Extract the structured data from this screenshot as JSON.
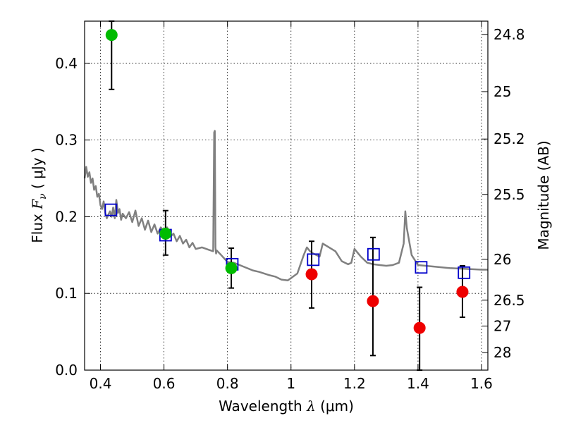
{
  "chart_data": {
    "type": "scatter",
    "xlabel": {
      "prefix": "Wavelength  ",
      "symbol": "λ",
      "units": " (μm)"
    },
    "ylabel": {
      "prefix": "Flux  ",
      "symbol": "F",
      "subscript": "ν",
      "units": "  ( μJy )"
    },
    "ylabel_right": "Magnitude (AB)",
    "xlim": [
      0.35,
      1.62
    ],
    "ylim": [
      0.0,
      0.455
    ],
    "grid": true,
    "x_ticks": [
      0.4,
      0.6,
      0.8,
      1.0,
      1.2,
      1.4,
      1.6
    ],
    "x_tick_labels": [
      "0.4",
      "0.6",
      "0.8",
      "1",
      "1.2",
      "1.4",
      "1.6"
    ],
    "y_ticks": [
      0.0,
      0.1,
      0.2,
      0.3,
      0.4
    ],
    "y_tick_labels": [
      "0.0",
      "0.1",
      "0.2",
      "0.3",
      "0.4"
    ],
    "right_ticks": [
      {
        "flux": 0.4377,
        "label": "24.8"
      },
      {
        "flux": 0.3631,
        "label": "25"
      },
      {
        "flux": 0.3013,
        "label": "25.2"
      },
      {
        "flux": 0.2291,
        "label": "25.5"
      },
      {
        "flux": 0.1445,
        "label": "26"
      },
      {
        "flux": 0.0912,
        "label": "26.5"
      },
      {
        "flux": 0.0575,
        "label": "27"
      },
      {
        "flux": 0.0229,
        "label": "28"
      }
    ],
    "series": [
      {
        "kind": "model_spectrum",
        "color": "#808080",
        "x": [
          0.35,
          0.355,
          0.36,
          0.365,
          0.37,
          0.375,
          0.38,
          0.385,
          0.39,
          0.395,
          0.4,
          0.405,
          0.41,
          0.415,
          0.42,
          0.425,
          0.43,
          0.435,
          0.44,
          0.445,
          0.45,
          0.455,
          0.46,
          0.465,
          0.47,
          0.48,
          0.49,
          0.5,
          0.51,
          0.52,
          0.53,
          0.54,
          0.55,
          0.56,
          0.57,
          0.58,
          0.59,
          0.6,
          0.61,
          0.62,
          0.63,
          0.64,
          0.65,
          0.66,
          0.67,
          0.68,
          0.69,
          0.7,
          0.72,
          0.74,
          0.755,
          0.758,
          0.76,
          0.762,
          0.764,
          0.766,
          0.78,
          0.8,
          0.82,
          0.85,
          0.88,
          0.9,
          0.93,
          0.95,
          0.97,
          0.99,
          1.0,
          1.02,
          1.04,
          1.05,
          1.06,
          1.07,
          1.08,
          1.09,
          1.1,
          1.12,
          1.14,
          1.16,
          1.18,
          1.19,
          1.2,
          1.22,
          1.24,
          1.26,
          1.28,
          1.3,
          1.32,
          1.34,
          1.355,
          1.36,
          1.365,
          1.38,
          1.4,
          1.45,
          1.5,
          1.55,
          1.6,
          1.62
        ],
        "y": [
          0.25,
          0.265,
          0.252,
          0.258,
          0.244,
          0.25,
          0.235,
          0.24,
          0.226,
          0.23,
          0.215,
          0.21,
          0.22,
          0.205,
          0.198,
          0.203,
          0.207,
          0.2,
          0.212,
          0.198,
          0.222,
          0.205,
          0.21,
          0.196,
          0.204,
          0.198,
          0.206,
          0.193,
          0.208,
          0.188,
          0.198,
          0.183,
          0.195,
          0.18,
          0.19,
          0.178,
          0.186,
          0.181,
          0.186,
          0.174,
          0.178,
          0.168,
          0.175,
          0.165,
          0.17,
          0.16,
          0.166,
          0.158,
          0.16,
          0.157,
          0.155,
          0.31,
          0.312,
          0.16,
          0.152,
          0.156,
          0.15,
          0.141,
          0.14,
          0.135,
          0.13,
          0.128,
          0.124,
          0.122,
          0.118,
          0.117,
          0.12,
          0.126,
          0.15,
          0.16,
          0.155,
          0.152,
          0.15,
          0.148,
          0.165,
          0.16,
          0.155,
          0.142,
          0.138,
          0.14,
          0.158,
          0.148,
          0.14,
          0.138,
          0.137,
          0.136,
          0.137,
          0.14,
          0.165,
          0.207,
          0.185,
          0.15,
          0.137,
          0.135,
          0.133,
          0.132,
          0.131,
          0.131
        ]
      },
      {
        "kind": "model_points",
        "marker": "open-square",
        "color": "#0000cc",
        "x": [
          0.433,
          0.605,
          0.815,
          1.07,
          1.26,
          1.41,
          1.545
        ],
        "y": [
          0.209,
          0.176,
          0.138,
          0.144,
          0.151,
          0.134,
          0.127
        ]
      },
      {
        "kind": "detections",
        "marker": "filled-circle",
        "color": "#00bb00",
        "x": [
          0.435,
          0.605,
          0.812
        ],
        "y": [
          0.437,
          0.178,
          0.133
        ],
        "err_low": [
          0.366,
          0.15,
          0.107
        ],
        "err_high": [
          0.455,
          0.208,
          0.159
        ]
      },
      {
        "kind": "marginal",
        "marker": "filled-circle",
        "color": "#ee0000",
        "x": [
          1.065,
          1.258,
          1.405,
          1.54
        ],
        "y": [
          0.125,
          0.09,
          0.055,
          0.102
        ],
        "err_low": [
          0.081,
          0.019,
          0.0,
          0.069
        ],
        "err_high": [
          0.168,
          0.173,
          0.108,
          0.136
        ]
      }
    ]
  }
}
